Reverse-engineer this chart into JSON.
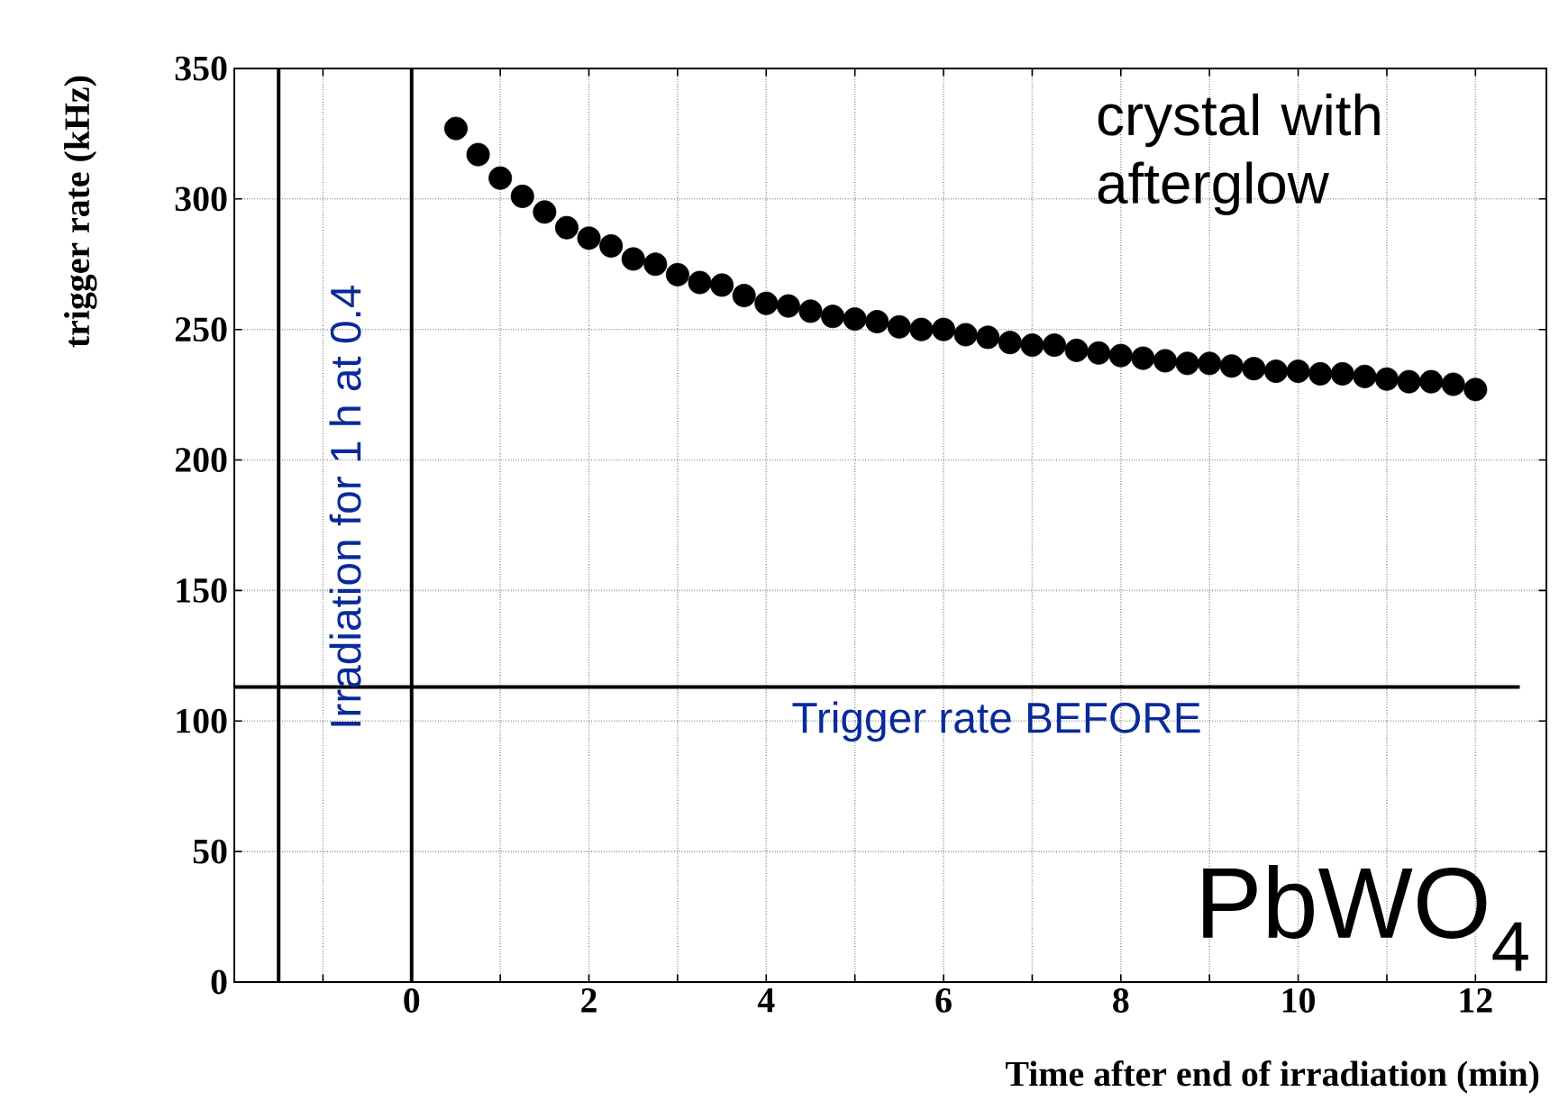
{
  "chart_data": {
    "type": "scatter",
    "xlabel": "Time after end of irradiation (min)",
    "ylabel": "trigger rate (kHz)",
    "x": [
      0.5,
      0.75,
      1,
      1.25,
      1.5,
      1.75,
      2,
      2.25,
      2.5,
      2.75,
      3,
      3.25,
      3.5,
      3.75,
      4,
      4.25,
      4.5,
      4.75,
      5,
      5.25,
      5.5,
      5.75,
      6,
      6.25,
      6.5,
      6.75,
      7,
      7.25,
      7.5,
      7.75,
      8,
      8.25,
      8.5,
      8.75,
      9,
      9.25,
      9.5,
      9.75,
      10,
      10.25,
      10.5,
      10.75,
      11,
      11.25,
      11.5,
      11.75,
      12
    ],
    "series": [
      {
        "color": "#000000",
        "values": [
          327,
          317,
          308,
          301,
          295,
          289,
          285,
          282,
          277,
          275,
          271,
          268,
          267,
          263,
          260,
          259,
          257,
          255,
          254,
          253,
          251,
          250,
          250,
          248,
          247,
          245,
          244,
          244,
          242,
          241,
          240,
          239,
          238,
          237,
          237,
          236,
          235,
          234,
          234,
          233,
          233,
          232,
          231,
          230,
          230,
          229,
          227
        ]
      }
    ],
    "marker": "circle",
    "xlim": [
      -2,
      12.8
    ],
    "ylim": [
      0,
      350
    ],
    "xticks": [
      {
        "value": -1,
        "label": null
      },
      0,
      {
        "value": 1,
        "label": null
      },
      2,
      {
        "value": 3,
        "label": null
      },
      4,
      {
        "value": 5,
        "label": null
      },
      6,
      {
        "value": 7,
        "label": null
      },
      8,
      {
        "value": 9,
        "label": null
      },
      10,
      {
        "value": 11,
        "label": null
      },
      12
    ],
    "yticks": [
      0,
      50,
      100,
      150,
      200,
      250,
      300,
      350
    ],
    "grid": true,
    "ref_lines": [
      {
        "axis": "y",
        "value": 113,
        "label": "Trigger rate BEFORE",
        "color": "#000000"
      },
      {
        "axis": "x",
        "value": -1.5,
        "color": "#000000"
      },
      {
        "axis": "x",
        "value": 0,
        "color": "#000000"
      }
    ],
    "annotations": [
      "crystal with afterglow",
      "PbWO$_{4}$",
      "Irradiation for 1 h at 0.4"
    ]
  }
}
